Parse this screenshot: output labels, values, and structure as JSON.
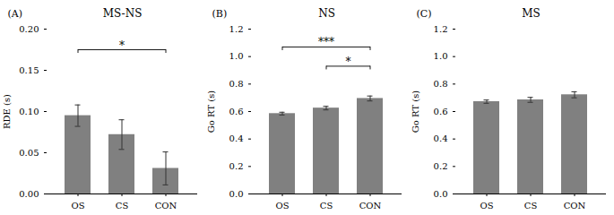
{
  "chart_data": [
    {
      "type": "bar",
      "title": "MS-NS",
      "label": "(A)",
      "ylabel": "RDE (s)",
      "categories": [
        "OS",
        "CS",
        "CON"
      ],
      "values": [
        0.095,
        0.072,
        0.031
      ],
      "errors": [
        0.013,
        0.018,
        0.02
      ],
      "color": "#808080",
      "ylim": [
        0.0,
        0.2
      ],
      "yticks": [
        {
          "value": 0.0,
          "label": "0.00"
        },
        0.05,
        {
          "value": 0.1,
          "label": "0.10"
        },
        0.15,
        {
          "value": 0.2,
          "label": "0.20"
        }
      ],
      "grid": false,
      "annotations": [
        {
          "from": "OS",
          "to": "CON",
          "y": 0.175,
          "text": "*"
        }
      ]
    },
    {
      "type": "bar",
      "title": "NS",
      "label": "(B)",
      "ylabel": "Go RT (s)",
      "categories": [
        "OS",
        "CS",
        "CON"
      ],
      "values": [
        0.585,
        0.625,
        0.695
      ],
      "errors": [
        0.01,
        0.013,
        0.018
      ],
      "color": "#808080",
      "ylim": [
        0.0,
        1.2
      ],
      "yticks": [
        {
          "value": 0.0,
          "label": "0.0"
        },
        0.2,
        0.4,
        0.6,
        0.8,
        {
          "value": 1.0,
          "label": "1.0"
        },
        1.2
      ],
      "grid": false,
      "annotations": [
        {
          "from": "OS",
          "to": "CON",
          "y": 1.07,
          "text": "***"
        },
        {
          "from": "CS",
          "to": "CON",
          "y": 0.93,
          "text": "*"
        }
      ]
    },
    {
      "type": "bar",
      "title": "MS",
      "label": "(C)",
      "ylabel": "Go RT (s)",
      "categories": [
        "OS",
        "CS",
        "CON"
      ],
      "values": [
        0.672,
        0.685,
        0.722
      ],
      "errors": [
        0.012,
        0.018,
        0.022
      ],
      "color": "#808080",
      "ylim": [
        0.0,
        1.2
      ],
      "yticks": [
        {
          "value": 0.0,
          "label": "0.0"
        },
        0.2,
        0.4,
        0.6,
        0.8,
        {
          "value": 1.0,
          "label": "1.0"
        },
        1.2
      ],
      "grid": false
    }
  ]
}
